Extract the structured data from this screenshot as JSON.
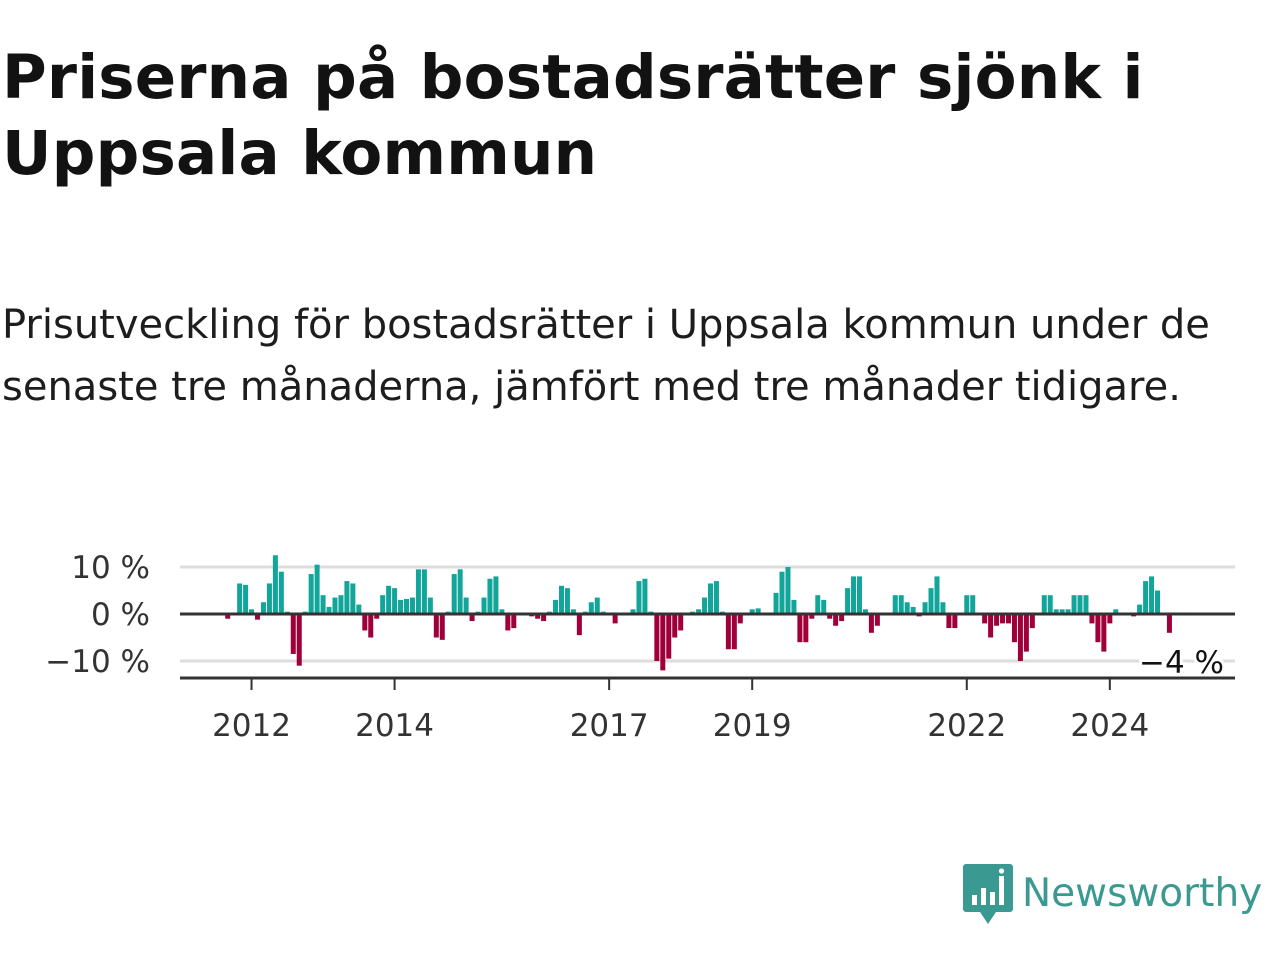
{
  "title": "Priserna på bostadsrätter sjönk i Uppsala kommun",
  "subtitle": "Prisutveckling för bostadsrätter i Uppsala kommun under de senaste tre månaderna, jämfört med tre månader tidigare.",
  "brand": {
    "name": "Newsworthy",
    "color": "#3a9a91",
    "icon": "bar-chart-speech-bubble-icon"
  },
  "colors": {
    "positive": "#12a69a",
    "negative": "#a0003a",
    "grid": "#dddddd",
    "axis": "#333333"
  },
  "chart_data": {
    "type": "bar",
    "title": "Priserna på bostadsrätter sjönk i Uppsala kommun",
    "xlabel": "",
    "ylabel": "",
    "ylim": [
      -14,
      12
    ],
    "xlim": [
      2011.0,
      2025.75
    ],
    "start": 2011.667,
    "step": 0.08333,
    "yticks": [
      {
        "value": 10,
        "label": "10 %"
      },
      {
        "value": 0,
        "label": "0 %"
      },
      {
        "value": -10,
        "label": "−10 %"
      }
    ],
    "xticks": [
      {
        "value": 2012,
        "label": "2012"
      },
      {
        "value": 2014,
        "label": "2014"
      },
      {
        "value": 2017,
        "label": "2017"
      },
      {
        "value": 2019,
        "label": "2019"
      },
      {
        "value": 2022,
        "label": "2022"
      },
      {
        "value": 2024,
        "label": "2024"
      }
    ],
    "end_label": {
      "text": "−4 %",
      "value": -4
    },
    "values": [
      -1,
      0,
      6.5,
      6.2,
      1,
      -1.2,
      2.5,
      6.5,
      12.5,
      9,
      0.5,
      -8.5,
      -11,
      0.5,
      8.5,
      10.5,
      4,
      1.5,
      3.5,
      4,
      7,
      6.5,
      2,
      -3.5,
      -5,
      -1,
      4,
      6,
      5.5,
      3,
      3.2,
      3.5,
      9.5,
      9.5,
      3.5,
      -5,
      -5.5,
      0.5,
      8.5,
      9.5,
      3.5,
      -1.5,
      0.5,
      3.5,
      7.5,
      8,
      1,
      -3.5,
      -3,
      0,
      0,
      -0.5,
      -1,
      -1.5,
      0.5,
      3,
      6,
      5.5,
      1,
      -4.5,
      0.5,
      2.5,
      3.5,
      0.5,
      0.2,
      -2,
      0,
      0,
      1,
      7,
      7.5,
      0.5,
      -10,
      -12,
      -9.5,
      -5,
      -3.5,
      0,
      0.5,
      1,
      3.5,
      6.5,
      7,
      0.5,
      -7.5,
      -7.5,
      -2,
      0,
      1,
      1.2,
      0,
      0,
      4.5,
      9,
      10,
      3,
      -6,
      -6,
      -1,
      4,
      3,
      -1,
      -2.5,
      -1.5,
      5.5,
      8,
      8,
      1,
      -4,
      -2.5,
      0,
      0,
      4,
      4,
      2.5,
      1.5,
      -0.5,
      2.5,
      5.5,
      8,
      2.5,
      -3,
      -3,
      0,
      4,
      4,
      0,
      -2,
      -5,
      -2.5,
      -2,
      -2,
      -6,
      -10,
      -8,
      -3,
      0,
      4,
      4,
      1,
      1,
      1,
      4,
      4,
      4,
      -2,
      -6,
      -8,
      -2,
      1,
      0,
      0,
      -0.5,
      2,
      7,
      8,
      5,
      0,
      -4
    ]
  }
}
